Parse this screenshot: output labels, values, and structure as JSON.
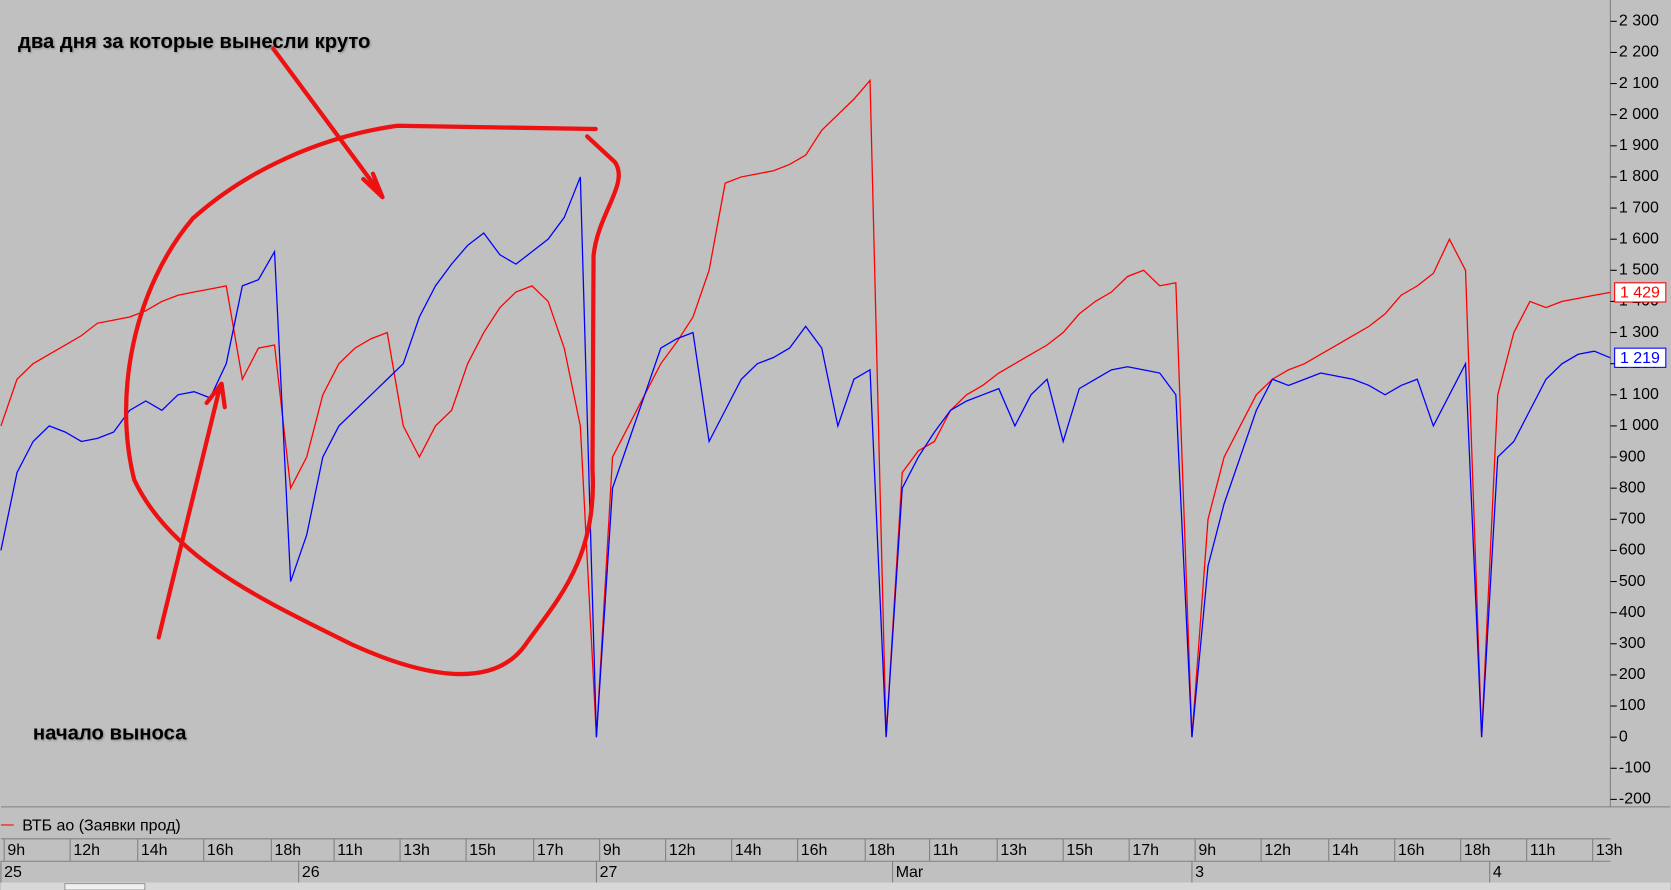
{
  "chart_data": {
    "type": "line",
    "annotations": [
      "два дня за которые вынесли круто",
      "начало выноса"
    ],
    "xlim": [
      0,
      100
    ],
    "xticks": [
      {
        "value": 0.2,
        "label": "9h"
      },
      {
        "value": 4.3,
        "label": "12h"
      },
      {
        "value": 8.5,
        "label": "14h"
      },
      {
        "value": 12.6,
        "label": "16h"
      },
      {
        "value": 16.8,
        "label": "18h"
      },
      {
        "value": 20.7,
        "label": "11h"
      },
      {
        "value": 24.8,
        "label": "13h"
      },
      {
        "value": 28.9,
        "label": "15h"
      },
      {
        "value": 33.1,
        "label": "17h"
      },
      {
        "value": 37.2,
        "label": "9h"
      },
      {
        "value": 41.3,
        "label": "12h"
      },
      {
        "value": 45.4,
        "label": "14h"
      },
      {
        "value": 49.5,
        "label": "16h"
      },
      {
        "value": 53.7,
        "label": "18h"
      },
      {
        "value": 57.7,
        "label": "11h"
      },
      {
        "value": 61.9,
        "label": "13h"
      },
      {
        "value": 66,
        "label": "15h"
      },
      {
        "value": 70.1,
        "label": "17h"
      },
      {
        "value": 74.2,
        "label": "9h"
      },
      {
        "value": 78.3,
        "label": "12h"
      },
      {
        "value": 82.5,
        "label": "14h"
      },
      {
        "value": 86.6,
        "label": "16h"
      },
      {
        "value": 90.7,
        "label": "18h"
      },
      {
        "value": 94.8,
        "label": "11h"
      },
      {
        "value": 98.9,
        "label": "13h"
      }
    ],
    "date_ticks": [
      {
        "value": 0,
        "label": "25"
      },
      {
        "value": 18.5,
        "label": "26"
      },
      {
        "value": 37,
        "label": "27"
      },
      {
        "value": 55.4,
        "label": "Mar"
      },
      {
        "value": 74,
        "label": "3"
      },
      {
        "value": 92.5,
        "label": "4"
      }
    ],
    "ylim": [
      -200,
      2300
    ],
    "yticks": [
      {
        "value": 2300,
        "label": "2 300"
      },
      {
        "value": 2200,
        "label": "2 200"
      },
      {
        "value": 2100,
        "label": "2 100"
      },
      {
        "value": 2000,
        "label": "2 000"
      },
      {
        "value": 1900,
        "label": "1 900"
      },
      {
        "value": 1800,
        "label": "1 800"
      },
      {
        "value": 1700,
        "label": "1 700"
      },
      {
        "value": 1600,
        "label": "1 600"
      },
      {
        "value": 1500,
        "label": "1 500"
      },
      {
        "value": 1400,
        "label": "1 400"
      },
      {
        "value": 1300,
        "label": "1 300"
      },
      {
        "value": 1200,
        "label": "1 200"
      },
      {
        "value": 1100,
        "label": "1 100"
      },
      {
        "value": 1000,
        "label": "1 000"
      },
      900,
      800,
      700,
      600,
      500,
      400,
      300,
      200,
      100,
      0,
      -100,
      -200
    ],
    "grid": false,
    "series": [
      {
        "name": "ВТБ ао (Заявки прод)",
        "color": "#ff0000",
        "last": {
          "value": 1429,
          "label": "1 429"
        },
        "values": [
          1000,
          1150,
          1200,
          1230,
          1260,
          1290,
          1330,
          1340,
          1350,
          1370,
          1400,
          1420,
          1430,
          1440,
          1450,
          1150,
          1250,
          1260,
          800,
          900,
          1100,
          1200,
          1250,
          1280,
          1300,
          1000,
          900,
          1000,
          1050,
          1200,
          1300,
          1380,
          1430,
          1450,
          1400,
          1250,
          1000,
          0,
          900,
          1000,
          1100,
          1200,
          1270,
          1350,
          1500,
          1780,
          1800,
          1810,
          1820,
          1840,
          1870,
          1950,
          2000,
          2050,
          2110,
          0,
          850,
          920,
          950,
          1050,
          1100,
          1130,
          1170,
          1200,
          1230,
          1260,
          1300,
          1360,
          1400,
          1430,
          1480,
          1500,
          1450,
          1460,
          0,
          700,
          900,
          1000,
          1100,
          1150,
          1180,
          1200,
          1230,
          1260,
          1290,
          1320,
          1360,
          1420,
          1450,
          1490,
          1600,
          1500,
          0,
          1100,
          1300,
          1400,
          1380,
          1400,
          1410,
          1420,
          1429
        ]
      },
      {
        "color": "#0000ff",
        "last": {
          "value": 1219,
          "label": "1 219"
        },
        "values": [
          600,
          850,
          950,
          1000,
          980,
          950,
          960,
          980,
          1050,
          1080,
          1050,
          1100,
          1110,
          1090,
          1200,
          1450,
          1470,
          1560,
          500,
          650,
          900,
          1000,
          1050,
          1100,
          1150,
          1200,
          1350,
          1450,
          1520,
          1580,
          1620,
          1550,
          1520,
          1560,
          1600,
          1670,
          1800,
          0,
          800,
          950,
          1100,
          1250,
          1280,
          1300,
          950,
          1050,
          1150,
          1200,
          1220,
          1250,
          1320,
          1250,
          1000,
          1150,
          1180,
          0,
          800,
          900,
          980,
          1050,
          1080,
          1100,
          1120,
          1000,
          1100,
          1150,
          950,
          1120,
          1150,
          1180,
          1190,
          1180,
          1170,
          1100,
          0,
          550,
          750,
          900,
          1050,
          1150,
          1130,
          1150,
          1170,
          1160,
          1150,
          1130,
          1100,
          1130,
          1150,
          1000,
          1100,
          1200,
          0,
          900,
          950,
          1050,
          1150,
          1200,
          1230,
          1240,
          1219
        ]
      }
    ]
  }
}
